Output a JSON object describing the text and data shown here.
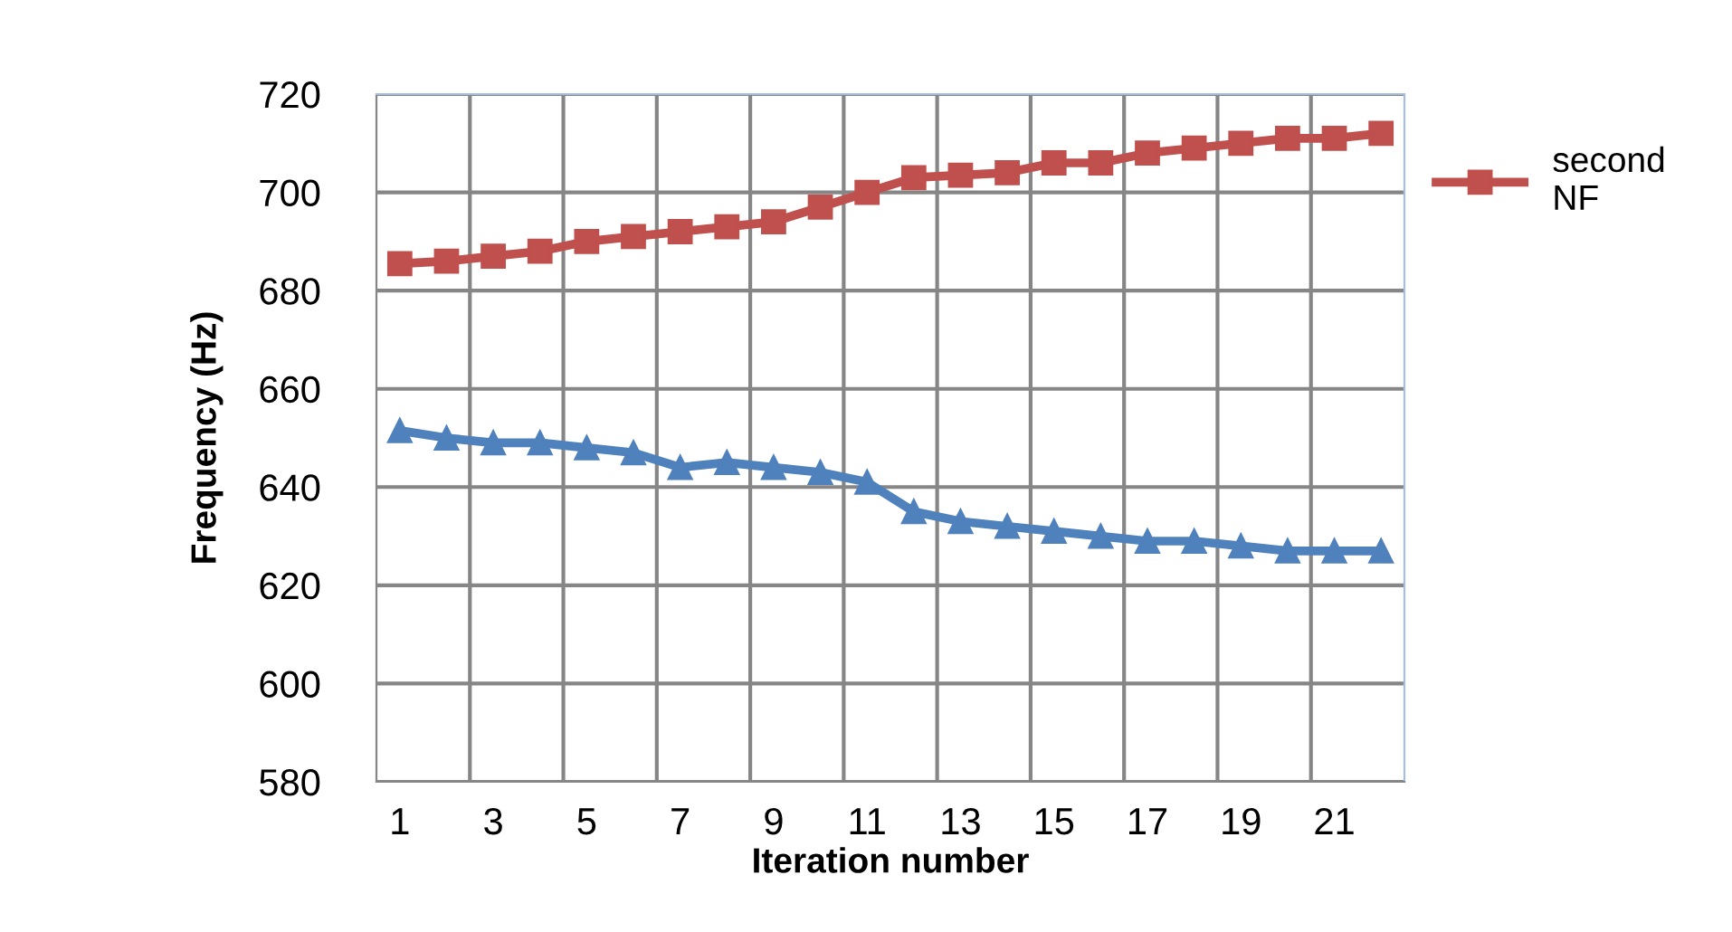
{
  "chart_data": {
    "type": "line",
    "xlabel": "Iteration number",
    "ylabel": "Frequency (Hz)",
    "categories": [
      "1",
      null,
      "3",
      null,
      "5",
      null,
      "7",
      null,
      "9",
      null,
      "11",
      null,
      "13",
      null,
      "15",
      null,
      "17",
      null,
      "19",
      null,
      "21",
      null
    ],
    "series": [
      {
        "name": "second NF",
        "color": "#c0504d",
        "marker": "square",
        "values": [
          685.5,
          686,
          687,
          688,
          690,
          691,
          692,
          693,
          694,
          697,
          700,
          703,
          703.5,
          704,
          706,
          706,
          708,
          709,
          710,
          711,
          711,
          712
        ]
      },
      {
        "color": "#4f81bd",
        "marker": "triangle",
        "values": [
          651.5,
          650,
          649,
          649,
          648,
          647,
          644,
          645,
          644,
          643,
          641,
          635,
          633,
          632,
          631,
          630,
          629,
          629,
          628,
          627,
          627,
          627
        ]
      }
    ],
    "ylim": [
      580,
      720
    ],
    "yticks": [
      580,
      600,
      620,
      640,
      660,
      680,
      700,
      720
    ],
    "grid": true,
    "legend": "right",
    "line_style": "solid"
  }
}
